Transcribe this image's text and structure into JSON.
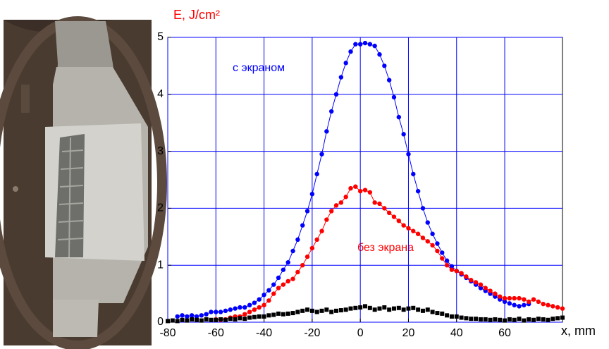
{
  "chart_data": {
    "type": "scatter",
    "y_label": "E, J/cm²",
    "x_label": "x, mm",
    "annotations": [
      {
        "text": "с экраном",
        "color": "#0000ff"
      },
      {
        "text": "без экрана",
        "color": "#ff0000"
      }
    ],
    "x": [
      -80,
      -78,
      -76,
      -74,
      -72,
      -70,
      -68,
      -66,
      -64,
      -62,
      -60,
      -58,
      -56,
      -54,
      -52,
      -50,
      -48,
      -46,
      -44,
      -42,
      -40,
      -38,
      -36,
      -34,
      -32,
      -30,
      -28,
      -26,
      -24,
      -22,
      -20,
      -18,
      -16,
      -14,
      -12,
      -10,
      -8,
      -6,
      -4,
      -2,
      0,
      2,
      4,
      6,
      8,
      10,
      12,
      14,
      16,
      18,
      20,
      22,
      24,
      26,
      28,
      30,
      32,
      34,
      36,
      38,
      40,
      42,
      44,
      46,
      48,
      50,
      52,
      54,
      56,
      58,
      60,
      62,
      64,
      66,
      68,
      70,
      72,
      74,
      76,
      78,
      80,
      82,
      84
    ],
    "series": [
      {
        "color": "#0000ff",
        "marker": "circle",
        "line": true,
        "values": [
          null,
          null,
          0.1,
          0.12,
          0.1,
          0.12,
          0.1,
          0.12,
          0.14,
          0.18,
          0.18,
          0.18,
          0.2,
          0.22,
          0.24,
          0.26,
          0.26,
          0.3,
          0.34,
          0.4,
          0.48,
          0.56,
          0.66,
          0.78,
          0.92,
          1.05,
          1.25,
          1.45,
          1.7,
          1.95,
          2.25,
          2.6,
          2.95,
          3.35,
          3.7,
          4.0,
          4.3,
          4.55,
          4.75,
          4.88,
          4.88,
          4.9,
          4.88,
          4.85,
          4.7,
          4.5,
          4.25,
          3.95,
          3.6,
          3.3,
          2.95,
          2.6,
          2.3,
          2.0,
          1.75,
          1.55,
          1.38,
          1.22,
          1.08,
          0.98,
          0.9,
          0.84,
          0.78,
          0.72,
          0.66,
          0.6,
          0.55,
          0.5,
          0.45,
          0.4,
          0.36,
          0.33,
          0.3,
          0.28,
          0.3,
          0.32,
          null,
          null,
          null,
          null,
          null,
          null,
          null
        ]
      },
      {
        "color": "#ff0000",
        "marker": "circle",
        "line": true,
        "values": [
          null,
          null,
          null,
          null,
          null,
          null,
          null,
          null,
          null,
          null,
          0.05,
          0.04,
          0.05,
          0.08,
          0.1,
          0.1,
          0.14,
          0.18,
          0.22,
          0.26,
          0.3,
          0.38,
          0.5,
          0.6,
          0.66,
          0.72,
          0.76,
          0.88,
          1.0,
          1.15,
          1.3,
          1.45,
          1.6,
          1.8,
          1.95,
          2.05,
          2.1,
          2.2,
          2.35,
          2.38,
          2.3,
          2.32,
          2.28,
          2.1,
          2.08,
          2.0,
          1.92,
          1.85,
          1.78,
          1.7,
          1.65,
          1.6,
          1.55,
          1.48,
          1.42,
          1.35,
          1.25,
          1.12,
          1.0,
          0.92,
          0.9,
          0.86,
          0.8,
          0.74,
          0.7,
          0.66,
          0.6,
          0.55,
          0.5,
          0.45,
          0.42,
          0.42,
          0.42,
          0.42,
          0.4,
          0.36,
          0.4,
          0.36,
          0.32,
          0.3,
          0.28,
          0.26,
          0.24
        ]
      },
      {
        "color": "#000000",
        "marker": "square",
        "line": false,
        "values": [
          0.02,
          0.03,
          0.02,
          0.04,
          0.03,
          0.05,
          0.04,
          0.03,
          0.05,
          0.04,
          0.04,
          0.05,
          0.04,
          0.06,
          0.05,
          0.07,
          0.06,
          0.08,
          0.09,
          0.1,
          0.1,
          0.12,
          0.13,
          0.15,
          0.14,
          0.15,
          0.16,
          0.18,
          0.2,
          0.22,
          0.2,
          0.18,
          0.2,
          0.22,
          0.18,
          0.2,
          0.21,
          0.22,
          0.24,
          0.25,
          0.26,
          0.28,
          0.25,
          0.22,
          0.24,
          0.26,
          0.22,
          0.24,
          0.25,
          0.22,
          0.24,
          0.25,
          0.22,
          0.2,
          0.22,
          0.18,
          0.16,
          0.15,
          0.12,
          0.1,
          0.1,
          0.08,
          0.07,
          0.06,
          0.06,
          0.05,
          0.05,
          0.04,
          0.05,
          0.04,
          0.03,
          0.05,
          0.04,
          0.06,
          0.03,
          0.05,
          0.04,
          0.06,
          0.05,
          0.04,
          0.06,
          0.07,
          0.08
        ]
      }
    ],
    "xlim": [
      -80,
      84
    ],
    "ylim": [
      0,
      5
    ],
    "xticks": [
      -80,
      -60,
      -40,
      -20,
      0,
      20,
      40,
      60
    ],
    "yticks": [
      0,
      1,
      2,
      3,
      4,
      5
    ],
    "grid_color": "#0000ff",
    "grid": true
  }
}
